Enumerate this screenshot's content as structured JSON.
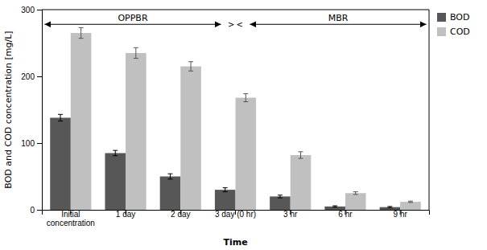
{
  "chart_data": {
    "type": "bar",
    "categories": [
      "Initial\nconcentration",
      "1 day",
      "2 day",
      "3 day (0 hr)",
      "3 hr",
      "6 hr",
      "9 hr"
    ],
    "series": [
      {
        "name": "BOD",
        "color": "#575757",
        "values": [
          138,
          85,
          50,
          30,
          20,
          5,
          4
        ],
        "errors": [
          5,
          4,
          4,
          3,
          2,
          1,
          1
        ]
      },
      {
        "name": "COD",
        "color": "#c0c0c0",
        "values": [
          265,
          235,
          215,
          168,
          82,
          25,
          12
        ],
        "errors": [
          8,
          8,
          7,
          6,
          5,
          2,
          1
        ]
      }
    ],
    "xlabel": "Time",
    "ylabel": "BOD and COD concentration [mg/L]",
    "ylim": [
      0,
      300
    ],
    "yticks": [
      0,
      100,
      200,
      300
    ],
    "grid": false,
    "legend": "right",
    "annotations": [
      {
        "text": "OPPBR",
        "y": 281
      },
      {
        "text": "MBR",
        "y": 281
      },
      {
        "text": "> <",
        "y": 278
      }
    ]
  }
}
